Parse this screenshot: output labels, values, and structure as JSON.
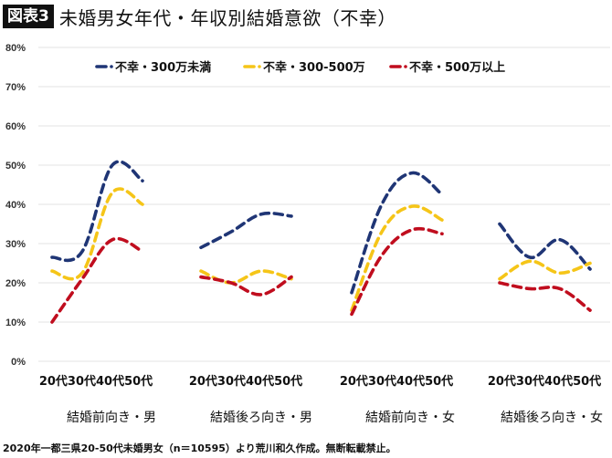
{
  "header": {
    "badge": "図表3",
    "title": "未婚男女年代・年収別結婚意欲（不幸）"
  },
  "footnote": "2020年一都三県20-50代未婚男女（n＝10595）より荒川和久作成。無断転載禁止。",
  "chart_data": {
    "type": "line",
    "title": "未婚男女年代・年収別結婚意欲（不幸）",
    "xlabel": "",
    "ylabel": "",
    "ylim": [
      0,
      80
    ],
    "yticks": [
      "0%",
      "10%",
      "20%",
      "30%",
      "40%",
      "50%",
      "60%",
      "70%",
      "80%"
    ],
    "grid": true,
    "legend_position": "top",
    "line_style": "dashed-smooth",
    "groups": [
      {
        "label": "結婚前向き・男",
        "categories": [
          "20代",
          "30代",
          "40代",
          "50代"
        ]
      },
      {
        "label": "結婚後ろ向き・男",
        "categories": [
          "20代",
          "30代",
          "40代",
          "50代"
        ]
      },
      {
        "label": "結婚前向き・女",
        "categories": [
          "20代",
          "30代",
          "40代",
          "50代"
        ]
      },
      {
        "label": "結婚後ろ向き・女",
        "categories": [
          "20代",
          "30代",
          "40代",
          "50代"
        ]
      }
    ],
    "group_tick_labels": [
      "20代30代40代50代",
      "20代30代40代50代",
      "20代30代40代50代",
      "20代30代40代50代"
    ],
    "group_labels": [
      "結婚前向き・男",
      "結婚後ろ向き・男",
      "結婚前向き・女",
      "結婚後ろ向き・女"
    ],
    "series": [
      {
        "name": "不幸・300万未満",
        "color": "#1f3575",
        "values": [
          [
            26.5,
            28,
            50,
            46
          ],
          [
            29,
            33,
            37.5,
            37
          ],
          [
            17.5,
            40,
            48,
            42.5
          ],
          [
            35,
            26.5,
            31,
            23.5
          ]
        ]
      },
      {
        "name": "不幸・300-500万",
        "color": "#f5c518",
        "values": [
          [
            23,
            22.5,
            43,
            40
          ],
          [
            23,
            20,
            23,
            21
          ],
          [
            13,
            33,
            39.5,
            36
          ],
          [
            21,
            25.5,
            22.5,
            25
          ]
        ]
      },
      {
        "name": "不幸・500万以上",
        "color": "#c00d1e",
        "values": [
          [
            10,
            21,
            31,
            28
          ],
          [
            21.5,
            20,
            17,
            21.5
          ],
          [
            12,
            27,
            33.5,
            32.5
          ],
          [
            20,
            18.5,
            18.5,
            13
          ]
        ]
      }
    ]
  }
}
